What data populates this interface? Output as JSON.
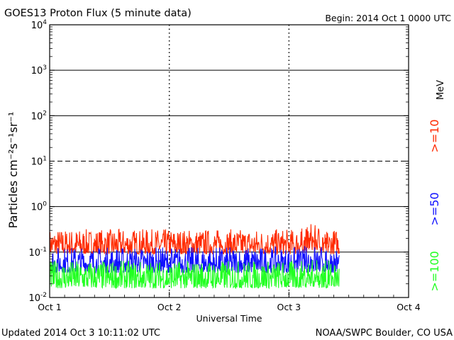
{
  "chart_data": {
    "type": "line",
    "title": "GOES13 Proton Flux (5 minute data)",
    "begin_label": "Begin: 2014 Oct 1 0000 UTC",
    "ylabel": "Particles cm⁻²s⁻¹sr⁻¹",
    "xlabel": "Universal Time",
    "y_scale": "log",
    "ylim": [
      0.01,
      10000
    ],
    "y_ticks": [
      {
        "base": "10",
        "exp": "-2",
        "value": 0.01
      },
      {
        "base": "10",
        "exp": "-1",
        "value": 0.1
      },
      {
        "base": "10",
        "exp": "0",
        "value": 1
      },
      {
        "base": "10",
        "exp": "1",
        "value": 10
      },
      {
        "base": "10",
        "exp": "2",
        "value": 100
      },
      {
        "base": "10",
        "exp": "3",
        "value": 1000
      },
      {
        "base": "10",
        "exp": "4",
        "value": 10000
      }
    ],
    "horizontal_lines": [
      {
        "value": 0.1,
        "style": "solid"
      },
      {
        "value": 1,
        "style": "solid"
      },
      {
        "value": 10,
        "style": "dashed"
      },
      {
        "value": 100,
        "style": "solid"
      },
      {
        "value": 1000,
        "style": "solid"
      }
    ],
    "x_days": [
      0,
      3
    ],
    "x_range": [
      0,
      3
    ],
    "x_ticks": [
      "Oct 1",
      "Oct 2",
      "Oct 3",
      "Oct 4"
    ],
    "day_markers": [
      1,
      2
    ],
    "data_end_day": 2.42,
    "energy_unit": "MeV",
    "grid": true,
    "legend_placement": "right (vertical)",
    "series": [
      {
        "name": ">=10",
        "color": "#ff2a00",
        "low": 0.09,
        "high": 0.32,
        "spike_day": 2.2,
        "spike_value": 0.5
      },
      {
        "name": ">=50",
        "color": "#1010ff",
        "low": 0.035,
        "high": 0.13,
        "spike_day": 2.2,
        "spike_value": 0.16
      },
      {
        "name": ">=100",
        "color": "#22ff22",
        "low": 0.016,
        "high": 0.065,
        "spike_day": 2.2,
        "spike_value": 0.08
      }
    ]
  },
  "footer": {
    "updated": "Updated 2014 Oct  3 10:11:02 UTC",
    "credit": "NOAA/SWPC Boulder, CO USA"
  }
}
